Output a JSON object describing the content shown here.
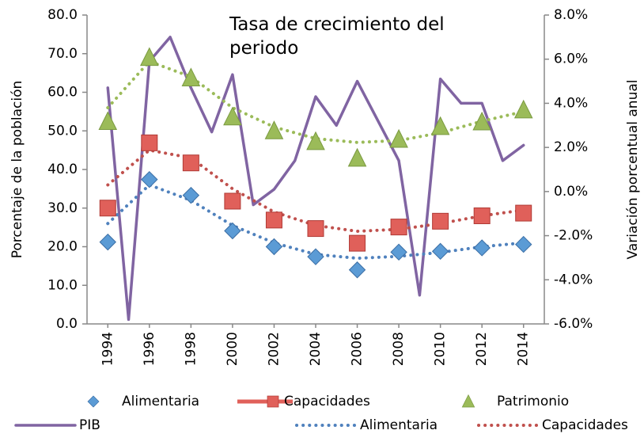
{
  "chart_data": {
    "type": "line",
    "title": "Tasa de crecimiento del periodo",
    "y_label": "Porcentaje de la población",
    "y2_label": "Variación porcentual anual",
    "xlim": [
      1993,
      2015
    ],
    "xticks": [
      1994,
      1996,
      1998,
      2000,
      2002,
      2004,
      2006,
      2008,
      2010,
      2012,
      2014
    ],
    "ylim": [
      0,
      80
    ],
    "yticks": [
      {
        "value": 0,
        "label": "0.0"
      },
      {
        "value": 10,
        "label": "10.0"
      },
      {
        "value": 20,
        "label": "20.0"
      },
      {
        "value": 30,
        "label": "30.0"
      },
      {
        "value": 40,
        "label": "40.0"
      },
      {
        "value": 50,
        "label": "50.0"
      },
      {
        "value": 60,
        "label": "60.0"
      },
      {
        "value": 70,
        "label": "70.0"
      },
      {
        "value": 80,
        "label": "80.0"
      }
    ],
    "y2lim": [
      -6,
      8
    ],
    "y2ticks": [
      {
        "value": -6,
        "label": "-6.0%"
      },
      {
        "value": -4,
        "label": "-4.0%"
      },
      {
        "value": -2,
        "label": "-2.0%"
      },
      {
        "value": 0,
        "label": "0.0%"
      },
      {
        "value": 2,
        "label": "2.0%"
      },
      {
        "value": 4,
        "label": "4.0%"
      },
      {
        "value": 6,
        "label": "6.0%"
      },
      {
        "value": 8,
        "label": "8.0%"
      }
    ],
    "series": [
      {
        "name": "Alimentaria",
        "marker": "diamond",
        "color": "#5b9bd5",
        "x": [
          1994,
          1996,
          1998,
          2000,
          2002,
          2004,
          2006,
          2008,
          2010,
          2012,
          2014
        ],
        "values": [
          21.2,
          37.4,
          33.3,
          24.1,
          20.0,
          17.4,
          14.0,
          18.6,
          18.8,
          19.7,
          20.6
        ]
      },
      {
        "name": "Capacidades",
        "marker": "square",
        "color": "#e0605a",
        "x": [
          1994,
          1996,
          1998,
          2000,
          2002,
          2004,
          2006,
          2008,
          2010,
          2012,
          2014
        ],
        "values": [
          30.0,
          46.9,
          41.7,
          31.8,
          26.9,
          24.7,
          20.9,
          25.1,
          26.6,
          28.0,
          28.7
        ]
      },
      {
        "name": "Patrimonio",
        "marker": "triangle",
        "color": "#9bbb59",
        "x": [
          1994,
          1996,
          1998,
          2000,
          2002,
          2004,
          2006,
          2008,
          2010,
          2012,
          2014
        ],
        "values": [
          52.4,
          69.0,
          63.7,
          53.6,
          50.0,
          47.2,
          42.9,
          47.8,
          51.1,
          52.3,
          55.4
        ]
      },
      {
        "name": "PIB",
        "style": "solid",
        "color": "#8064a2",
        "axis": "y2",
        "x": [
          1994,
          1995,
          1996,
          1997,
          1998,
          1999,
          2000,
          2001,
          2002,
          2003,
          2004,
          2005,
          2006,
          2007,
          2008,
          2009,
          2010,
          2011,
          2012,
          2013,
          2014
        ],
        "values": [
          4.7,
          -5.8,
          5.9,
          7.0,
          4.7,
          2.7,
          5.3,
          -0.6,
          0.1,
          1.4,
          4.3,
          3.0,
          5.0,
          3.2,
          1.4,
          -4.7,
          5.1,
          4.0,
          4.0,
          1.4,
          2.1
        ]
      },
      {
        "name": "Alimentaria",
        "style": "dotted",
        "color": "#4f81bd",
        "x": [
          1994,
          1996,
          1998,
          2000,
          2002,
          2004,
          2006,
          2008,
          2010,
          2012,
          2014
        ],
        "values": [
          26,
          36,
          32,
          25.5,
          21,
          18,
          17,
          17.5,
          18.5,
          20,
          21
        ]
      },
      {
        "name": "Capacidades",
        "style": "dotted",
        "color": "#c0504d",
        "x": [
          1994,
          1996,
          1998,
          2000,
          2002,
          2004,
          2006,
          2008,
          2010,
          2012,
          2014
        ],
        "values": [
          36,
          45,
          43,
          35,
          29,
          25.5,
          24,
          24.5,
          26,
          28,
          29.5
        ]
      },
      {
        "style": "dotted",
        "color": "#9bbb59",
        "x": [
          1994,
          1996,
          1998,
          2000,
          2002,
          2004,
          2006,
          2008,
          2010,
          2012,
          2014
        ],
        "values": [
          56,
          68,
          64,
          56,
          51,
          48,
          47,
          47.5,
          49.5,
          52.5,
          55
        ]
      }
    ]
  }
}
